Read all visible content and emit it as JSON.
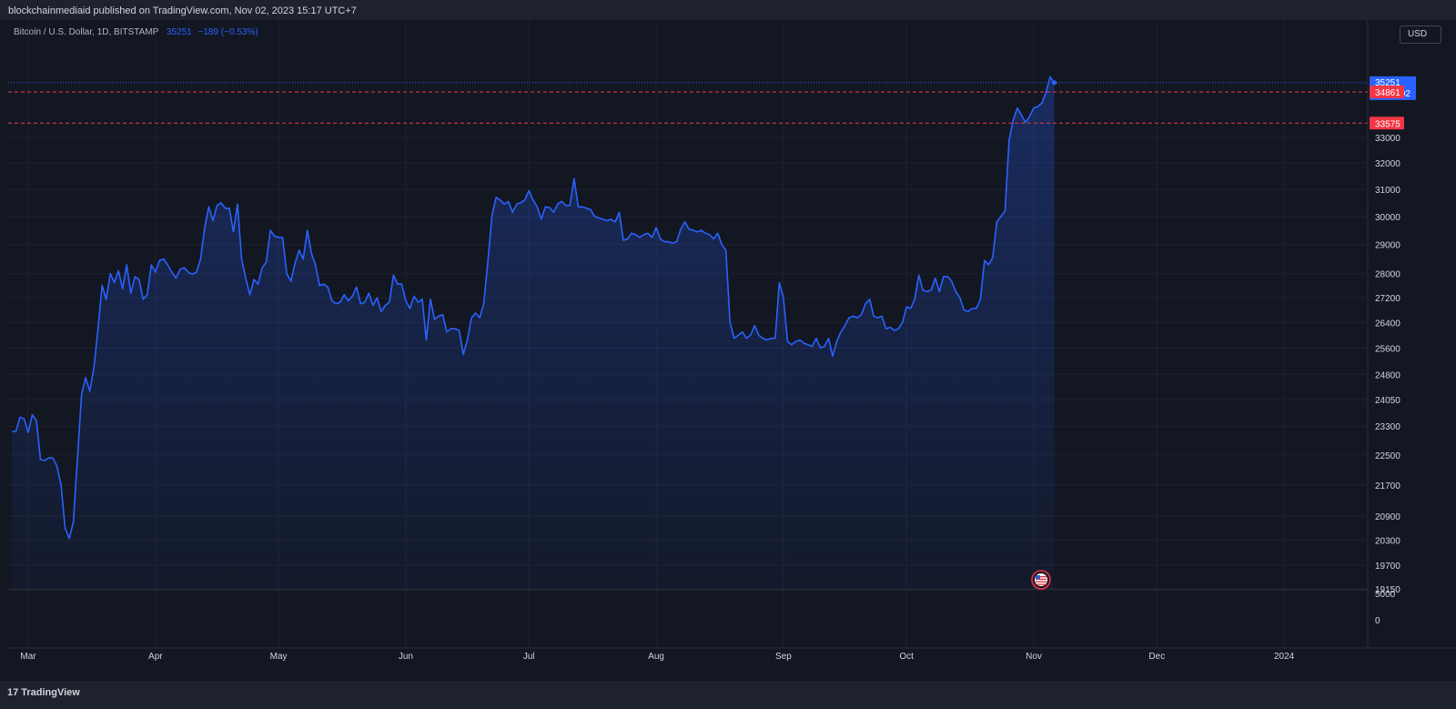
{
  "header": {
    "published_text": "blockchainmediaid published on TradingView.com, Nov 02, 2023 15:17 UTC+7"
  },
  "legend": {
    "symbol": "Bitcoin / U.S. Dollar, 1D, BITSTAMP",
    "last_value": "35251",
    "change": "−189 (−0.53%)"
  },
  "currency_button": "USD",
  "footer": {
    "logo_mark": "17",
    "logo_text": "TradingView"
  },
  "price_labels": {
    "current_price": "35251",
    "countdown": "15:42:02",
    "line_1": "34861",
    "line_2": "33575"
  },
  "colors": {
    "background": "#131722",
    "line": "#2962ff",
    "horizontal_line": "#f23645",
    "grid": "#1e2230"
  },
  "event_icon": "us-flag-icon",
  "chart_data": {
    "type": "area",
    "title": "Bitcoin / U.S. Dollar, 1D, BITSTAMP",
    "y_scale": "log",
    "ylim": [
      19150,
      36500
    ],
    "y_ticks": [
      19150,
      19700,
      20300,
      20900,
      21700,
      22500,
      23300,
      24050,
      24800,
      25600,
      26400,
      27200,
      28000,
      29000,
      30000,
      31000,
      32000,
      33000
    ],
    "x_ticks": [
      {
        "label": "Mar",
        "date": "2023-03-01"
      },
      {
        "label": "Apr",
        "date": "2023-04-01"
      },
      {
        "label": "May",
        "date": "2023-05-01"
      },
      {
        "label": "Jun",
        "date": "2023-06-01"
      },
      {
        "label": "Jul",
        "date": "2023-07-01"
      },
      {
        "label": "Aug",
        "date": "2023-08-01"
      },
      {
        "label": "Sep",
        "date": "2023-09-01"
      },
      {
        "label": "Oct",
        "date": "2023-10-01"
      },
      {
        "label": "Nov",
        "date": "2023-11-01"
      },
      {
        "label": "Dec",
        "date": "2023-12-01"
      },
      {
        "label": "2024",
        "date": "2024-01-01"
      }
    ],
    "horizontal_lines": [
      34861,
      33575
    ],
    "last_price": 35251,
    "volume_pane_ticks": [
      "5000",
      "0"
    ],
    "series": [
      {
        "start_date": "2023-02-25",
        "close": [
          23150,
          23150,
          23550,
          23500,
          23120,
          23620,
          23450,
          22380,
          22350,
          22420,
          22420,
          22200,
          21700,
          20600,
          20350,
          20750,
          22400,
          24200,
          24700,
          24300,
          25000,
          26200,
          27600,
          27150,
          28000,
          27700,
          28100,
          27500,
          28300,
          27350,
          27900,
          27800,
          27150,
          27300,
          28300,
          28050,
          28450,
          28500,
          28300,
          28050,
          27850,
          28150,
          28200,
          28050,
          27980,
          28050,
          28500,
          29600,
          30350,
          29850,
          30400,
          30500,
          30300,
          30300,
          29450,
          30450,
          28500,
          27850,
          27300,
          27800,
          27650,
          28200,
          28400,
          29500,
          29300,
          29250,
          29250,
          28000,
          27750,
          28350,
          28800,
          28500,
          29500,
          28700,
          28300,
          27600,
          27650,
          27550,
          27100,
          27000,
          27050,
          27300,
          27100,
          27250,
          27550,
          27000,
          27050,
          27350,
          26950,
          27200,
          26750,
          26950,
          27050,
          27950,
          27650,
          27650,
          27100,
          26850,
          27250,
          27050,
          27150,
          25850,
          27150,
          26500,
          26600,
          26650,
          26100,
          26200,
          26200,
          26150,
          25400,
          25850,
          26550,
          26700,
          26550,
          27000,
          28400,
          30050,
          30700,
          30600,
          30450,
          30550,
          30150,
          30450,
          30500,
          30600,
          30950,
          30600,
          30350,
          29900,
          30350,
          30330,
          30150,
          30450,
          30550,
          30400,
          30400,
          31400,
          30350,
          30350,
          30300,
          30250,
          30000,
          29950,
          29900,
          29850,
          29900,
          29800,
          30150,
          29150,
          29200,
          29400,
          29350,
          29250,
          29350,
          29400,
          29250,
          29600,
          29200,
          29100,
          29100,
          29050,
          29100,
          29550,
          29800,
          29550,
          29500,
          29450,
          29500,
          29400,
          29350,
          29200,
          29400,
          29000,
          28800,
          26400,
          25900,
          26000,
          26100,
          25900,
          26000,
          26300,
          26000,
          25900,
          25850,
          25900,
          25900,
          27700,
          27200,
          25800,
          25700,
          25800,
          25850,
          25750,
          25700,
          25650,
          25900,
          25600,
          25650,
          25900,
          25350,
          25800,
          26100,
          26300,
          26550,
          26600,
          26550,
          26650,
          27000,
          27150,
          26600,
          26550,
          26600,
          26200,
          26250,
          26150,
          26200,
          26400,
          26900,
          26850,
          27150,
          27950,
          27450,
          27400,
          27450,
          27850,
          27400,
          27900,
          27900,
          27750,
          27400,
          27200,
          26800,
          26750,
          26850,
          26850,
          27150,
          28450,
          28300,
          28550,
          29800,
          30000,
          30200,
          32900,
          33700,
          34200,
          33900,
          33600,
          33850,
          34200,
          34250,
          34400,
          34850,
          35500,
          35251
        ]
      }
    ]
  }
}
